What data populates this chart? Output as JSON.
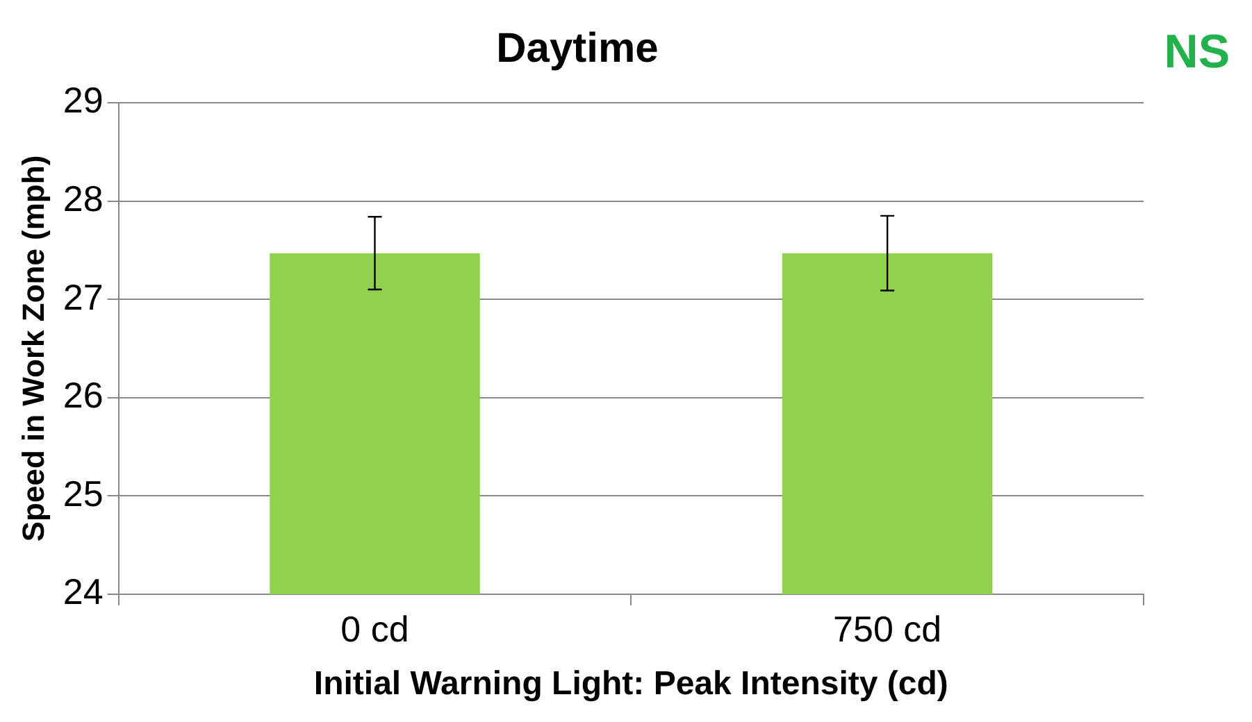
{
  "chart_data": {
    "type": "bar",
    "title": "Daytime",
    "xlabel": "Initial Warning Light: Peak Intensity (cd)",
    "ylabel": "Speed in Work Zone (mph)",
    "categories": [
      "0 cd",
      "750 cd"
    ],
    "values": [
      27.47,
      27.47
    ],
    "errors": [
      0.37,
      0.38
    ],
    "color": "#92d050",
    "ylim": [
      24,
      29
    ],
    "yticks": [
      24,
      25,
      26,
      27,
      28,
      29
    ],
    "grid": "y",
    "annotations": [
      "NS"
    ]
  }
}
